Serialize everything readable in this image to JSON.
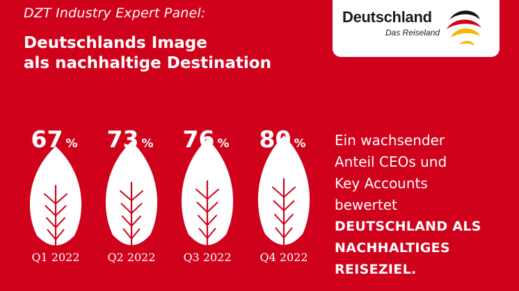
{
  "header": {
    "kicker": "DZT Industry Expert Panel:",
    "headline_line1": "Deutschlands Image",
    "headline_line2": "als nachhaltige Destination"
  },
  "logo": {
    "wordmark": "Deutschland",
    "tagline": "Das Reiseland"
  },
  "claim": {
    "line1": "Ein wachsender",
    "line2": "Anteil CEOs und",
    "line3": "Key Accounts",
    "line4": "bewertet",
    "line5": "DEUTSCHLAND ALS",
    "line6": "NACHHALTIGES",
    "line7": "REISEZIEL."
  },
  "colors": {
    "background": "#d0021b",
    "foreground": "#ffffff",
    "leaf_vein": "#d0021b"
  },
  "chart_data": {
    "type": "bar",
    "categories": [
      "Q1 2022",
      "Q2 2022",
      "Q3 2022",
      "Q4 2022"
    ],
    "values": [
      67,
      73,
      76,
      80
    ],
    "value_suffix": "%",
    "mark": "leaf-icon"
  }
}
